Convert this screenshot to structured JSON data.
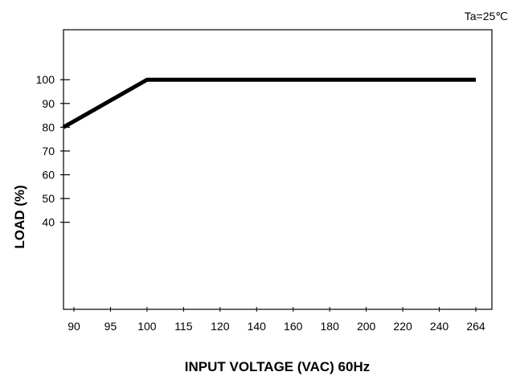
{
  "chart_data": {
    "type": "line",
    "annotation": "Ta=25℃",
    "xlabel": "INPUT VOLTAGE (VAC) 60Hz",
    "ylabel": "LOAD (%)",
    "x_categories": [
      "90",
      "95",
      "100",
      "115",
      "120",
      "140",
      "160",
      "180",
      "200",
      "220",
      "240",
      "264"
    ],
    "y_ticks": [
      "100",
      "90",
      "80",
      "70",
      "60",
      "50",
      "40"
    ],
    "ylim": [
      30,
      105
    ],
    "grid": false,
    "series": [
      {
        "x": [
          "90",
          "100",
          "264"
        ],
        "values": [
          80,
          100,
          100
        ]
      }
    ],
    "colors": {
      "line": "#000000",
      "axes": "#000000"
    }
  }
}
